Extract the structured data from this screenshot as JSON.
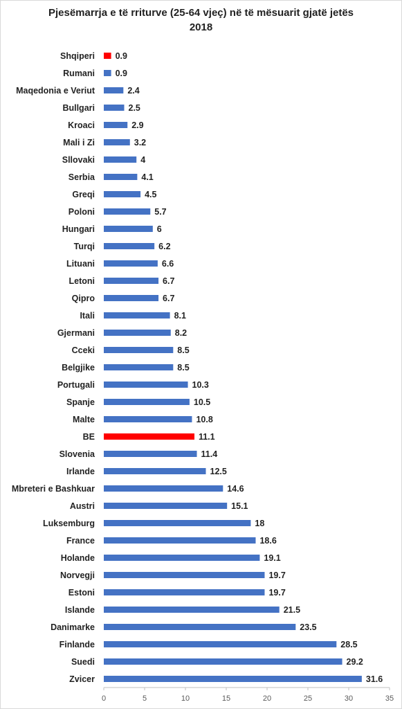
{
  "chart_data": {
    "type": "bar",
    "orientation": "horizontal",
    "title_line1": "Pjesëmarrja e të rriturve (25-64 vjeç) në të mësuarit gjatë jetës",
    "title_line2": "2018",
    "xlim": [
      0,
      35
    ],
    "ticks": [
      0,
      5,
      10,
      15,
      20,
      25,
      30,
      35
    ],
    "grid": false,
    "colors": {
      "default": "#4472c4",
      "highlight": "#ff0000"
    },
    "categories": [
      "Shqiperi",
      "Rumani",
      "Maqedonia e Veriut",
      "Bullgari",
      "Kroaci",
      "Mali i Zi",
      "Sllovaki",
      "Serbia",
      "Greqi",
      "Poloni",
      "Hungari",
      "Turqi",
      "Lituani",
      "Letoni",
      "Qipro",
      "Itali",
      "Gjermani",
      "Cceki",
      "Belgjike",
      "Portugali",
      "Spanje",
      "Malte",
      "BE",
      "Slovenia",
      "Irlande",
      "Mbreteri e Bashkuar",
      "Austri",
      "Luksemburg",
      "France",
      "Holande",
      "Norvegji",
      "Estoni",
      "Islande",
      "Danimarke",
      "Finlande",
      "Suedi",
      "Zvicer"
    ],
    "values": [
      0.9,
      0.9,
      2.4,
      2.5,
      2.9,
      3.2,
      4,
      4.1,
      4.5,
      5.7,
      6,
      6.2,
      6.6,
      6.7,
      6.7,
      8.1,
      8.2,
      8.5,
      8.5,
      10.3,
      10.5,
      10.8,
      11.1,
      11.4,
      12.5,
      14.6,
      15.1,
      18,
      18.6,
      19.1,
      19.7,
      19.7,
      21.5,
      23.5,
      28.5,
      29.2,
      31.6
    ],
    "value_labels": [
      "0.9",
      "0.9",
      "2.4",
      "2.5",
      "2.9",
      "3.2",
      "4",
      "4.1",
      "4.5",
      "5.7",
      "6",
      "6.2",
      "6.6",
      "6.7",
      "6.7",
      "8.1",
      "8.2",
      "8.5",
      "8.5",
      "10.3",
      "10.5",
      "10.8",
      "11.1",
      "11.4",
      "12.5",
      "14.6",
      "15.1",
      "18",
      "18.6",
      "19.1",
      "19.7",
      "19.7",
      "21.5",
      "23.5",
      "28.5",
      "29.2",
      "31.6"
    ],
    "highlighted": [
      "Shqiperi",
      "BE"
    ]
  }
}
